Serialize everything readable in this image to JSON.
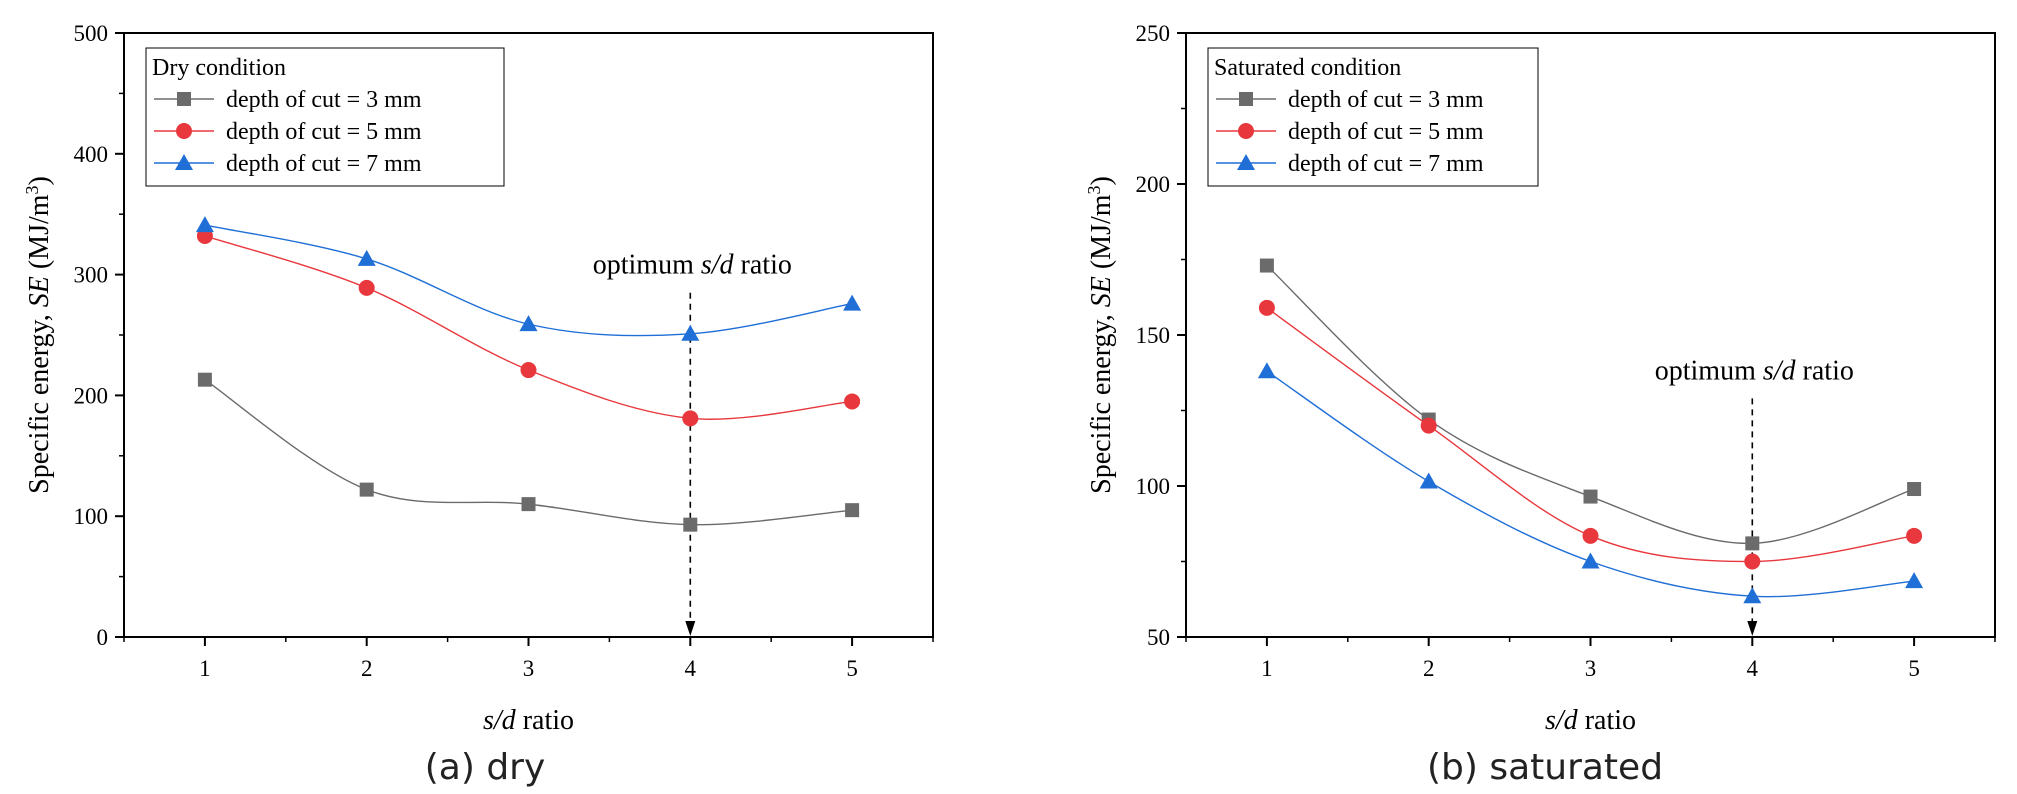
{
  "chart_data": [
    {
      "type": "line",
      "legend_title": "Dry condition",
      "legend_position": "top-left",
      "xlabel_italic": "s/d",
      "xlabel_rest": " ratio",
      "ylabel_main": "Specific energy, ",
      "ylabel_italic": "SE",
      "ylabel_unit": " (MJ/m",
      "ylabel_sup": "3",
      "ylabel_close": ")",
      "xlim": [
        0.5,
        5.5
      ],
      "ylim": [
        0,
        500
      ],
      "x_ticks": [
        1,
        2,
        3,
        4,
        5
      ],
      "y_ticks": [
        0,
        100,
        200,
        300,
        400,
        500
      ],
      "x": [
        1,
        2,
        3,
        4,
        5
      ],
      "series": [
        {
          "name": "depth of cut = 3 mm",
          "marker": "square",
          "color": "#6b6b6b",
          "values": [
            213,
            122,
            110,
            93,
            105
          ]
        },
        {
          "name": "depth of cut = 5 mm",
          "marker": "circle",
          "color": "#e8383d",
          "values": [
            332,
            289,
            221,
            181,
            195
          ]
        },
        {
          "name": "depth of cut = 7 mm",
          "marker": "triangle",
          "color": "#1f6fd6",
          "values": [
            341,
            313,
            259,
            251,
            276
          ]
        }
      ],
      "annotation": {
        "pre": "optimum ",
        "italic": "s/d",
        "post": " ratio",
        "x": 4,
        "y_top": 285
      },
      "caption": "(a) dry"
    },
    {
      "type": "line",
      "legend_title": "Saturated condition",
      "legend_position": "top-left",
      "xlabel_italic": "s/d",
      "xlabel_rest": " ratio",
      "ylabel_main": "Specific energy, ",
      "ylabel_italic": "SE",
      "ylabel_unit": " (MJ/m",
      "ylabel_sup": "3",
      "ylabel_close": ")",
      "xlim": [
        0.5,
        5.5
      ],
      "ylim": [
        50,
        250
      ],
      "x_ticks": [
        1,
        2,
        3,
        4,
        5
      ],
      "y_ticks": [
        50,
        100,
        150,
        200,
        250
      ],
      "x": [
        1,
        2,
        3,
        4,
        5
      ],
      "series": [
        {
          "name": "depth of cut = 3 mm",
          "marker": "square",
          "color": "#6b6b6b",
          "values": [
            173,
            122,
            96.5,
            81,
            99
          ]
        },
        {
          "name": "depth of cut = 5 mm",
          "marker": "circle",
          "color": "#e8383d",
          "values": [
            159,
            120,
            83.5,
            75,
            83.5
          ]
        },
        {
          "name": "depth of cut = 7 mm",
          "marker": "triangle",
          "color": "#1f6fd6",
          "values": [
            138,
            101.5,
            75,
            63.5,
            68.5
          ]
        }
      ],
      "annotation": {
        "pre": "optimum ",
        "italic": "s/d",
        "post": " ratio",
        "x": 4,
        "y_top": 129
      },
      "caption": "(b) saturated"
    }
  ]
}
